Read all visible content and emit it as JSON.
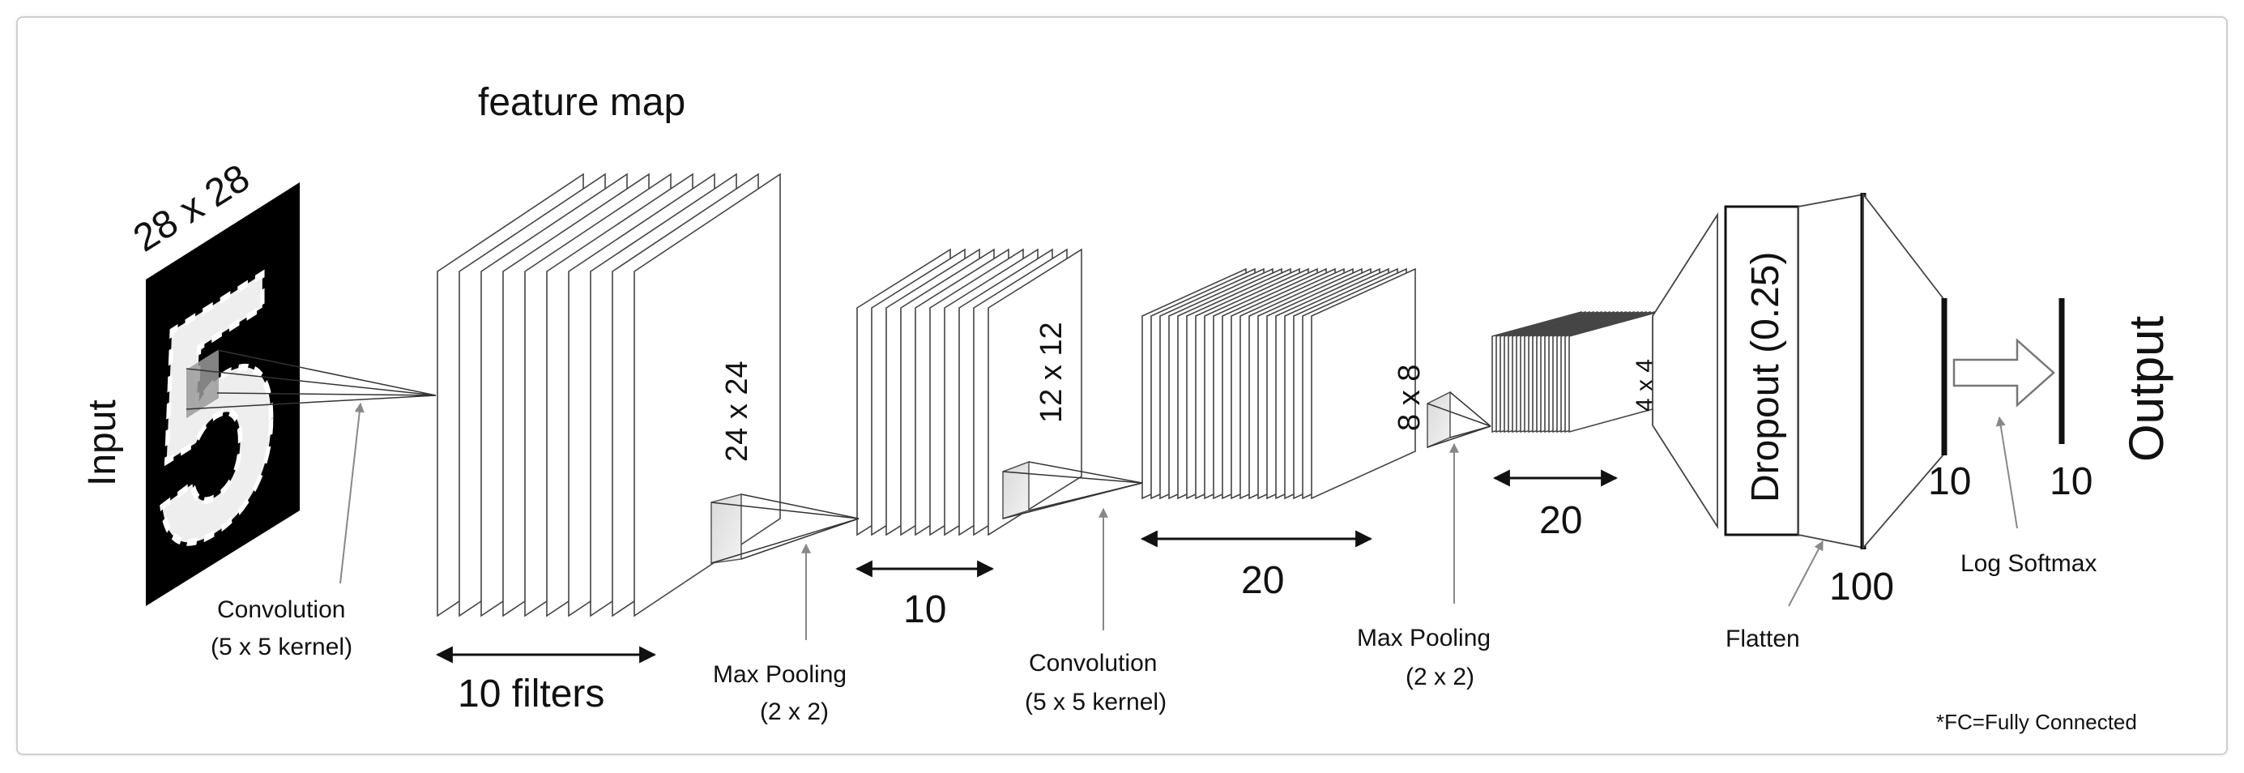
{
  "title": "feature map",
  "input": {
    "label": "Input",
    "size": "28 x 28",
    "digit": "5"
  },
  "output": {
    "label": "Output",
    "value": "10"
  },
  "layers": {
    "conv1": {
      "size": "24 x 24",
      "count": "10 filters"
    },
    "pool1": {
      "size": "12 x 12",
      "count": "10"
    },
    "conv2": {
      "size": "8 x 8",
      "count": "20"
    },
    "pool2": {
      "size": "4 x 4",
      "count": "20"
    },
    "dropout": {
      "label": "Dropout (0.25)"
    },
    "fc1": {
      "count": "100"
    },
    "fc2": {
      "count": "10"
    }
  },
  "operations": {
    "conv1": {
      "line1": "Convolution",
      "line2": "(5 x 5 kernel)"
    },
    "pool1": {
      "line1": "Max Pooling",
      "line2": "(2 x 2)"
    },
    "conv2": {
      "line1": "Convolution",
      "line2": "(5 x 5 kernel)"
    },
    "pool2": {
      "line1": "Max Pooling",
      "line2": "(2 x 2)"
    },
    "flatten": "Flatten",
    "softmax": "Log Softmax"
  },
  "footnote": "*FC=Fully Connected"
}
